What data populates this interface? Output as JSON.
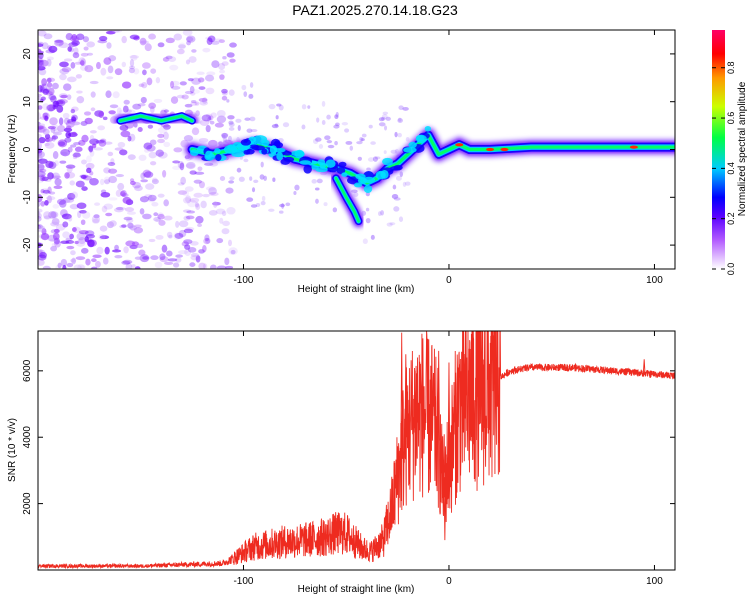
{
  "title": "PAZ1.2025.270.14.18.G23",
  "chart_data": [
    {
      "type": "heatmap",
      "name": "spectrogram",
      "xlabel": "Height of straight line (km)",
      "ylabel": "Frequency (Hz)",
      "xlim": [
        -200,
        110
      ],
      "ylim": [
        -25,
        25
      ],
      "xticks": [
        -100,
        0,
        100
      ],
      "xtick_labels": [
        "-100",
        "0",
        "100"
      ],
      "yticks": [
        -20,
        -10,
        0,
        10,
        20
      ],
      "ytick_labels": [
        "-20",
        "-10",
        "0",
        "10",
        "20"
      ],
      "colorbar": {
        "label": "Normalized spectral amplitude",
        "range": [
          0,
          0.95
        ],
        "ticks": [
          0,
          0.2,
          0.4,
          0.6,
          0.8
        ],
        "tick_labels": [
          "0.0",
          "0.2",
          "0.4",
          "0.6",
          "0.8"
        ],
        "colors": [
          "#ffffff",
          "#8800ff",
          "#0000ff",
          "#00ffff",
          "#00ff00",
          "#ffff00",
          "#ff8800",
          "#ff0000",
          "#ff0066"
        ]
      },
      "ridge": {
        "x": [
          -125,
          -115,
          -105,
          -95,
          -85,
          -75,
          -65,
          -55,
          -48,
          -40,
          -35,
          -30,
          -25,
          -20,
          -15,
          -10,
          -5,
          0,
          5,
          10,
          20,
          40,
          60,
          80,
          100,
          110
        ],
        "y": [
          0,
          -1,
          0,
          1,
          0,
          -2,
          -3,
          -4,
          -5,
          -7,
          -6,
          -4,
          -3,
          -1,
          1,
          3,
          -1,
          0,
          1,
          0,
          0,
          0.5,
          0.5,
          0.5,
          0.5,
          0.5
        ]
      },
      "side_branches": [
        {
          "x": [
            -160,
            -150,
            -140,
            -130,
            -125
          ],
          "y": [
            6,
            7,
            6,
            7,
            6
          ]
        },
        {
          "x": [
            -55,
            -50,
            -46,
            -44
          ],
          "y": [
            -6,
            -10,
            -13,
            -15
          ]
        }
      ]
    },
    {
      "type": "line",
      "name": "snr",
      "xlabel": "Height of straight line (km)",
      "ylabel": "SNR (10 * v/v)",
      "xlim": [
        -200,
        110
      ],
      "ylim": [
        0,
        7200
      ],
      "xticks": [
        -100,
        0,
        100
      ],
      "xtick_labels": [
        "-100",
        "0",
        "100"
      ],
      "yticks": [
        2000,
        4000,
        6000
      ],
      "ytick_labels": [
        "2000",
        "4000",
        "6000"
      ],
      "color": "#ee2b20",
      "envelope": {
        "x": [
          -200,
          -150,
          -110,
          -105,
          -95,
          -80,
          -70,
          -60,
          -55,
          -50,
          -42,
          -38,
          -32,
          -28,
          -25,
          -22,
          -20,
          -15,
          -12,
          -8,
          -5,
          -3,
          0,
          5,
          10,
          15,
          20,
          25,
          30,
          40,
          50,
          60,
          70,
          80,
          90,
          100,
          110
        ],
        "y": [
          120,
          120,
          200,
          350,
          700,
          850,
          900,
          1000,
          1100,
          1100,
          650,
          550,
          900,
          1800,
          2800,
          3800,
          4200,
          4800,
          4700,
          4500,
          3900,
          2600,
          3200,
          5000,
          5200,
          5300,
          5500,
          5800,
          6000,
          6100,
          6100,
          6100,
          6050,
          6000,
          5950,
          5900,
          5850
        ]
      },
      "spikes": [
        {
          "x": -23,
          "y": 7150
        },
        {
          "x": -21,
          "y": 6500
        },
        {
          "x": -16,
          "y": 6150
        },
        {
          "x": -5,
          "y": 6600
        },
        {
          "x": -2,
          "y": 900
        },
        {
          "x": 0,
          "y": 6250
        },
        {
          "x": 95,
          "y": 6350
        }
      ]
    }
  ]
}
